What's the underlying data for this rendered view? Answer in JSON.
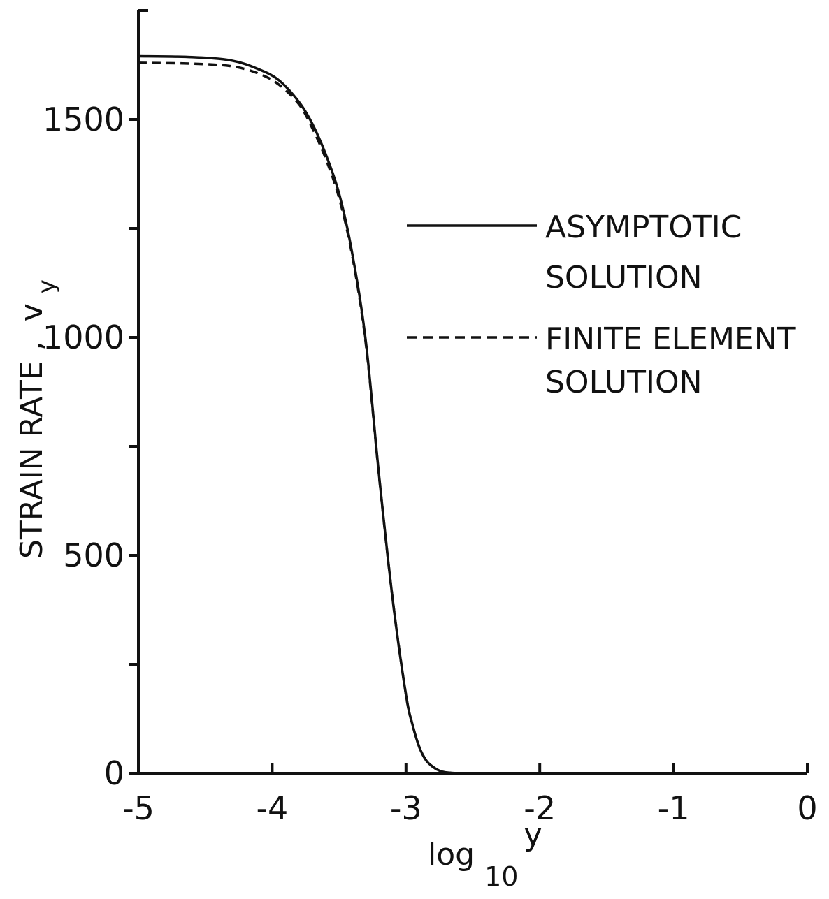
{
  "chart_data": {
    "type": "line",
    "xlabel": {
      "main": "log",
      "sub": "10",
      "var": "y"
    },
    "ylabel": {
      "main": "STRAIN RATE ,",
      "var": "v",
      "sub": "y"
    },
    "xlim": [
      -5,
      0
    ],
    "ylim": [
      0,
      1750
    ],
    "x_ticks": [
      -5,
      -4,
      -3,
      -2,
      -1,
      0
    ],
    "x_tick_labels": [
      "-5",
      "-4",
      "-3",
      "-2",
      "-1",
      "0"
    ],
    "y_ticks": [
      0,
      250,
      500,
      750,
      1000,
      1250,
      1500
    ],
    "y_tick_labels": [
      "0",
      "",
      "500",
      "",
      "1000",
      "",
      "1500"
    ],
    "grid": false,
    "legend_position": "right",
    "series": [
      {
        "name": "ASYMPTOTIC SOLUTION",
        "name_lines": [
          "ASYMPTOTIC",
          "SOLUTION"
        ],
        "style": "solid",
        "color": "#111111",
        "x": [
          -5.0,
          -4.6,
          -4.3,
          -4.1,
          -3.95,
          -3.8,
          -3.7,
          -3.6,
          -3.5,
          -3.4,
          -3.3,
          -3.2,
          -3.1,
          -3.0,
          -2.95,
          -2.9,
          -2.85,
          -2.8,
          -2.75,
          -2.7,
          -2.6
        ],
        "y": [
          1645,
          1643,
          1635,
          1615,
          1590,
          1540,
          1490,
          1420,
          1330,
          1190,
          990,
          680,
          400,
          180,
          110,
          60,
          30,
          15,
          6,
          2,
          0
        ]
      },
      {
        "name": "FINITE ELEMENT SOLUTION",
        "name_lines": [
          "FINITE ELEMENT",
          "SOLUTION"
        ],
        "style": "dashed",
        "color": "#111111",
        "x": [
          -5.0,
          -4.6,
          -4.3,
          -4.1,
          -3.95,
          -3.8,
          -3.7,
          -3.6,
          -3.5,
          -3.4,
          -3.3,
          -3.2,
          -3.1,
          -3.0,
          -2.95,
          -2.9,
          -2.85,
          -2.8,
          -2.75,
          -2.7,
          -2.6
        ],
        "y": [
          1630,
          1628,
          1622,
          1605,
          1580,
          1535,
          1480,
          1410,
          1320,
          1185,
          985,
          678,
          400,
          180,
          110,
          60,
          30,
          15,
          6,
          2,
          0
        ]
      }
    ]
  }
}
